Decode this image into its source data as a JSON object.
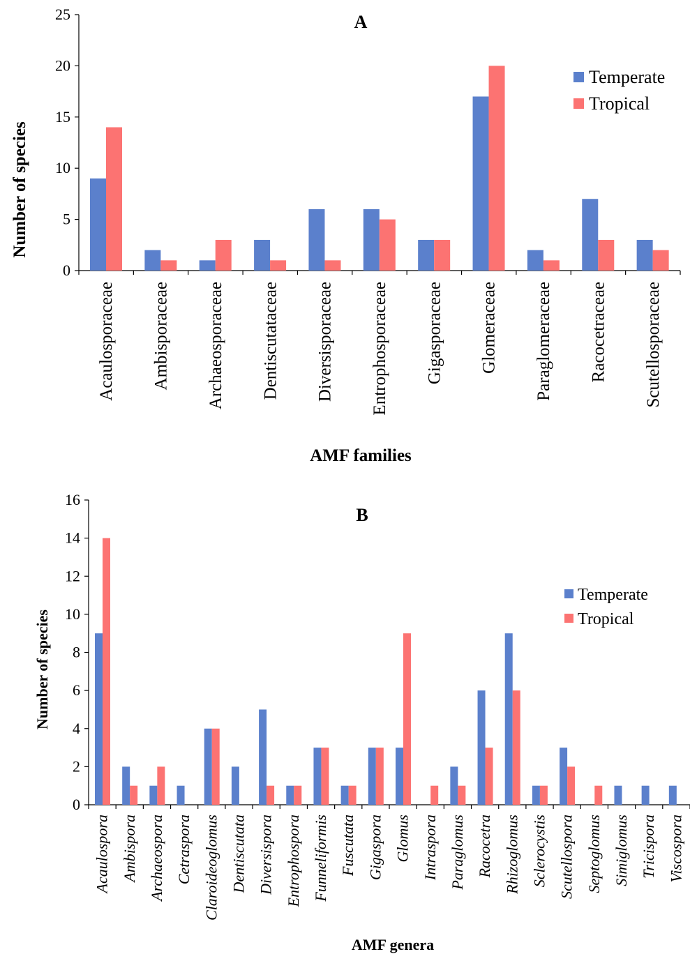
{
  "colors": {
    "temperate": "#5b80cc",
    "tropical": "#fc7372"
  },
  "chart_data": [
    {
      "type": "bar",
      "title": "A",
      "xlabel": "AMF families",
      "ylabel": "Number of species",
      "ylim": [
        0,
        25
      ],
      "yticks": [
        0,
        5,
        10,
        15,
        20,
        25
      ],
      "legend_position": "top-right",
      "grid": false,
      "categories": [
        "Acaulosporaceae",
        "Ambisporaceae",
        "Archaeosporaceae",
        "Dentiscutataceae",
        "Diversisporaceae",
        "Entrophosporaceae",
        "Gigasporaceae",
        "Glomeraceae",
        "Paraglomeraceae",
        "Racocetraceae",
        "Scutellosporaceae"
      ],
      "series": [
        {
          "name": "Temperate",
          "values": [
            9,
            2,
            1,
            3,
            6,
            6,
            3,
            17,
            2,
            7,
            3
          ]
        },
        {
          "name": "Tropical",
          "values": [
            14,
            1,
            3,
            1,
            1,
            5,
            3,
            20,
            1,
            3,
            2
          ]
        }
      ]
    },
    {
      "type": "bar",
      "title": "B",
      "xlabel": "AMF genera",
      "ylabel": "Number of species",
      "ylim": [
        0,
        16
      ],
      "yticks": [
        0,
        2,
        4,
        6,
        8,
        10,
        12,
        14,
        16
      ],
      "legend_position": "top-right",
      "grid": false,
      "categories": [
        "Acaulospora",
        "Ambispora",
        "Archaeospora",
        "Cetraspora",
        "Claroideoglomus",
        "Dentiscutata",
        "Diversispora",
        "Entrophospora",
        "Funneliformis",
        "Fuscutata",
        "Gigaspora",
        "Glomus",
        "Intraspora",
        "Paraglomus",
        "Racocetra",
        "Rhizoglomus",
        "Sclerocystis",
        "Scutellospora",
        "Septoglomus",
        "Simiglomus",
        "Tricispora",
        "Viscospora"
      ],
      "series": [
        {
          "name": "Temperate",
          "values": [
            9,
            2,
            1,
            1,
            4,
            2,
            5,
            1,
            3,
            1,
            3,
            3,
            0,
            2,
            6,
            9,
            1,
            3,
            0,
            1,
            1,
            1
          ]
        },
        {
          "name": "Tropical",
          "values": [
            14,
            1,
            2,
            0,
            4,
            0,
            1,
            1,
            3,
            1,
            3,
            9,
            1,
            1,
            3,
            6,
            1,
            2,
            1,
            0,
            0,
            0
          ]
        }
      ]
    }
  ]
}
